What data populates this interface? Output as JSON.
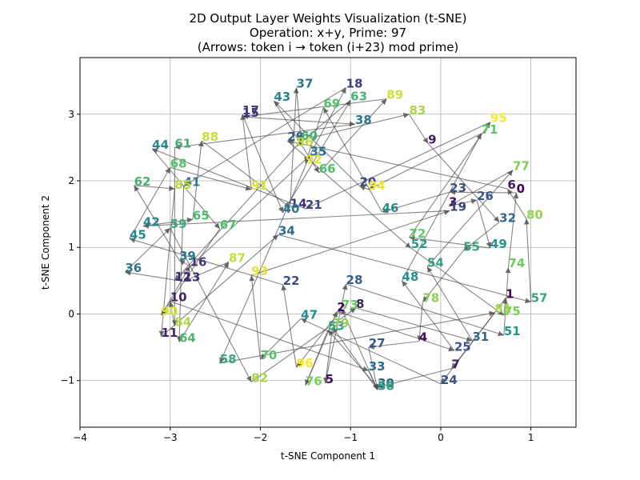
{
  "chart_data": {
    "type": "scatter",
    "title": [
      "2D Output Layer Weights Visualization (t-SNE)",
      "Operation: x+y, Prime: 97",
      "(Arrows: token i → token (i+23) mod prime)"
    ],
    "xlabel": "t-SNE Component 1",
    "ylabel": "t-SNE Component 2",
    "xlim": [
      -4,
      1.5
    ],
    "ylim": [
      -1.7,
      3.85
    ],
    "xticks": [
      -4,
      -3,
      -2,
      -1,
      0,
      1
    ],
    "yticks": [
      -1,
      0,
      1,
      2,
      3
    ],
    "grid": true,
    "colormap": "viridis",
    "arrow_step": 23,
    "prime": 97,
    "points": [
      {
        "token": "0",
        "x": 0.84,
        "y": 1.82
      },
      {
        "token": "1",
        "x": 0.72,
        "y": 0.24
      },
      {
        "token": "2",
        "x": -1.15,
        "y": 0.04
      },
      {
        "token": "3",
        "x": 0.09,
        "y": 1.62
      },
      {
        "token": "4",
        "x": -0.24,
        "y": -0.41
      },
      {
        "token": "5",
        "x": -1.28,
        "y": -1.04
      },
      {
        "token": "6",
        "x": 0.74,
        "y": 1.88
      },
      {
        "token": "7",
        "x": 0.12,
        "y": -0.82
      },
      {
        "token": "8",
        "x": -0.94,
        "y": 0.09
      },
      {
        "token": "9",
        "x": -0.14,
        "y": 2.56
      },
      {
        "token": "10",
        "x": -3.0,
        "y": 0.19
      },
      {
        "token": "11",
        "x": -3.1,
        "y": -0.34
      },
      {
        "token": "12",
        "x": -2.95,
        "y": 0.5
      },
      {
        "token": "13",
        "x": -2.85,
        "y": 0.49
      },
      {
        "token": "14",
        "x": -1.67,
        "y": 1.6
      },
      {
        "token": "15",
        "x": -2.2,
        "y": 2.96
      },
      {
        "token": "16",
        "x": -2.78,
        "y": 0.72
      },
      {
        "token": "17",
        "x": -2.2,
        "y": 3.0
      },
      {
        "token": "18",
        "x": -1.05,
        "y": 3.4
      },
      {
        "token": "19",
        "x": 0.1,
        "y": 1.55
      },
      {
        "token": "20",
        "x": -0.9,
        "y": 1.92
      },
      {
        "token": "21",
        "x": -1.5,
        "y": 1.58
      },
      {
        "token": "22",
        "x": -1.75,
        "y": 0.44
      },
      {
        "token": "23",
        "x": 0.1,
        "y": 1.83
      },
      {
        "token": "24",
        "x": 0.0,
        "y": -1.05
      },
      {
        "token": "25",
        "x": 0.15,
        "y": -0.55
      },
      {
        "token": "26",
        "x": 0.4,
        "y": 1.71
      },
      {
        "token": "27",
        "x": -0.8,
        "y": -0.5
      },
      {
        "token": "28",
        "x": -1.05,
        "y": 0.45
      },
      {
        "token": "29",
        "x": -1.7,
        "y": 2.6
      },
      {
        "token": "30",
        "x": -0.7,
        "y": -1.1
      },
      {
        "token": "31",
        "x": 0.35,
        "y": -0.4
      },
      {
        "token": "32",
        "x": 0.65,
        "y": 1.38
      },
      {
        "token": "33",
        "x": -0.8,
        "y": -0.85
      },
      {
        "token": "34",
        "x": -1.8,
        "y": 1.19
      },
      {
        "token": "35",
        "x": -1.45,
        "y": 2.38
      },
      {
        "token": "36",
        "x": -3.5,
        "y": 0.63
      },
      {
        "token": "37",
        "x": -1.6,
        "y": 3.4
      },
      {
        "token": "38",
        "x": -0.95,
        "y": 2.85
      },
      {
        "token": "39",
        "x": -2.9,
        "y": 0.81
      },
      {
        "token": "40",
        "x": -1.75,
        "y": 1.52
      },
      {
        "token": "41",
        "x": -2.85,
        "y": 1.92
      },
      {
        "token": "42",
        "x": -3.3,
        "y": 1.32
      },
      {
        "token": "43",
        "x": -1.85,
        "y": 3.2
      },
      {
        "token": "44",
        "x": -3.2,
        "y": 2.48
      },
      {
        "token": "45",
        "x": -3.45,
        "y": 1.13
      },
      {
        "token": "46",
        "x": -0.65,
        "y": 1.53
      },
      {
        "token": "47",
        "x": -1.55,
        "y": -0.07
      },
      {
        "token": "48",
        "x": -0.43,
        "y": 0.5
      },
      {
        "token": "49",
        "x": 0.55,
        "y": 0.99
      },
      {
        "token": "50",
        "x": -0.7,
        "y": -1.14
      },
      {
        "token": "51",
        "x": 0.7,
        "y": -0.32
      },
      {
        "token": "52",
        "x": -0.33,
        "y": 0.99
      },
      {
        "token": "53",
        "x": -1.25,
        "y": -0.24
      },
      {
        "token": "54",
        "x": -0.15,
        "y": 0.71
      },
      {
        "token": "55",
        "x": 0.25,
        "y": 0.95
      },
      {
        "token": "56",
        "x": -0.7,
        "y": -1.14
      },
      {
        "token": "57",
        "x": 1.0,
        "y": 0.18
      },
      {
        "token": "58",
        "x": -2.45,
        "y": -0.74
      },
      {
        "token": "59",
        "x": -3.0,
        "y": 1.29
      },
      {
        "token": "60",
        "x": -1.55,
        "y": 2.61
      },
      {
        "token": "61",
        "x": -2.95,
        "y": 2.5
      },
      {
        "token": "62",
        "x": -3.4,
        "y": 1.93
      },
      {
        "token": "63",
        "x": -1.0,
        "y": 3.21
      },
      {
        "token": "64",
        "x": -2.9,
        "y": -0.42
      },
      {
        "token": "65",
        "x": -2.75,
        "y": 1.42
      },
      {
        "token": "66",
        "x": -1.35,
        "y": 2.12
      },
      {
        "token": "67",
        "x": -2.45,
        "y": 1.28
      },
      {
        "token": "68",
        "x": -3.0,
        "y": 2.2
      },
      {
        "token": "69",
        "x": -1.3,
        "y": 3.1
      },
      {
        "token": "70",
        "x": -2.0,
        "y": -0.68
      },
      {
        "token": "71",
        "x": 0.45,
        "y": 2.71
      },
      {
        "token": "72",
        "x": -0.35,
        "y": 1.15
      },
      {
        "token": "73",
        "x": -1.1,
        "y": 0.08
      },
      {
        "token": "74",
        "x": 0.75,
        "y": 0.7
      },
      {
        "token": "75",
        "x": 0.7,
        "y": -0.02
      },
      {
        "token": "76",
        "x": -1.5,
        "y": -1.07
      },
      {
        "token": "77",
        "x": 0.8,
        "y": 2.16
      },
      {
        "token": "78",
        "x": -0.2,
        "y": 0.18
      },
      {
        "token": "79",
        "x": -1.2,
        "y": -0.2
      },
      {
        "token": "80",
        "x": 0.95,
        "y": 1.43
      },
      {
        "token": "81",
        "x": 0.6,
        "y": 0.02
      },
      {
        "token": "82",
        "x": -2.1,
        "y": -1.02
      },
      {
        "token": "83",
        "x": -0.35,
        "y": 3.0
      },
      {
        "token": "84",
        "x": -2.95,
        "y": -0.18
      },
      {
        "token": "85",
        "x": -2.95,
        "y": 1.88
      },
      {
        "token": "86",
        "x": -1.6,
        "y": 2.52
      },
      {
        "token": "87",
        "x": -2.35,
        "y": 0.78
      },
      {
        "token": "88",
        "x": -2.65,
        "y": 2.6
      },
      {
        "token": "89",
        "x": -0.6,
        "y": 3.23
      },
      {
        "token": "90",
        "x": -3.1,
        "y": -0.02
      },
      {
        "token": "91",
        "x": -2.1,
        "y": 1.87
      },
      {
        "token": "92",
        "x": -1.5,
        "y": 2.26
      },
      {
        "token": "93",
        "x": -2.1,
        "y": 0.58
      },
      {
        "token": "94",
        "x": -0.8,
        "y": 1.87
      },
      {
        "token": "95",
        "x": 0.55,
        "y": 2.88
      },
      {
        "token": "96",
        "x": -1.6,
        "y": -0.8
      }
    ]
  }
}
